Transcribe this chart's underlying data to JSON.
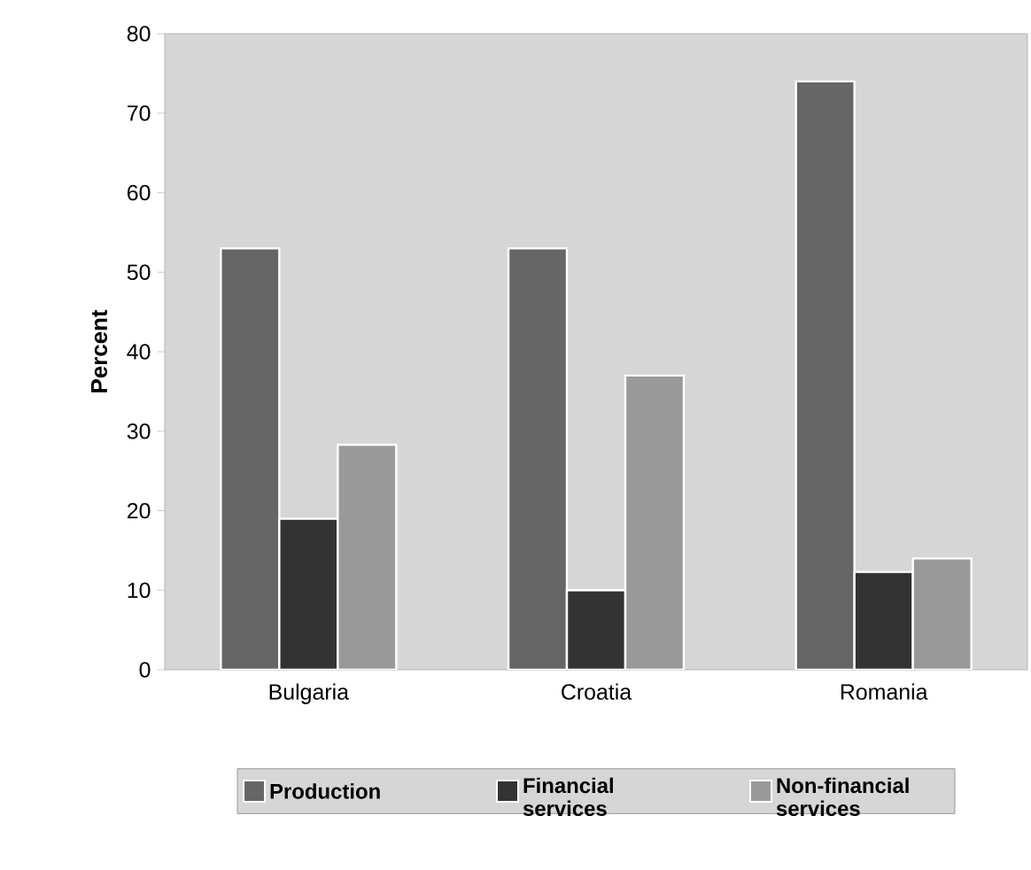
{
  "chart_data": {
    "type": "bar",
    "ylabel": "Percent",
    "categories": [
      "Bulgaria",
      "Croatia",
      "Romania"
    ],
    "series": [
      {
        "name": "Production",
        "color": "#666666",
        "values": [
          53,
          53,
          74
        ]
      },
      {
        "name": "Financial services",
        "color": "#333333",
        "values": [
          19,
          10,
          12.3
        ]
      },
      {
        "name": "Non-financial services",
        "color": "#999999",
        "values": [
          28.3,
          37,
          14
        ]
      }
    ],
    "ylim": [
      0,
      80
    ],
    "yticks": [
      0,
      10,
      20,
      30,
      40,
      50,
      60,
      70,
      80
    ],
    "grid": false,
    "legend": "bottom"
  }
}
